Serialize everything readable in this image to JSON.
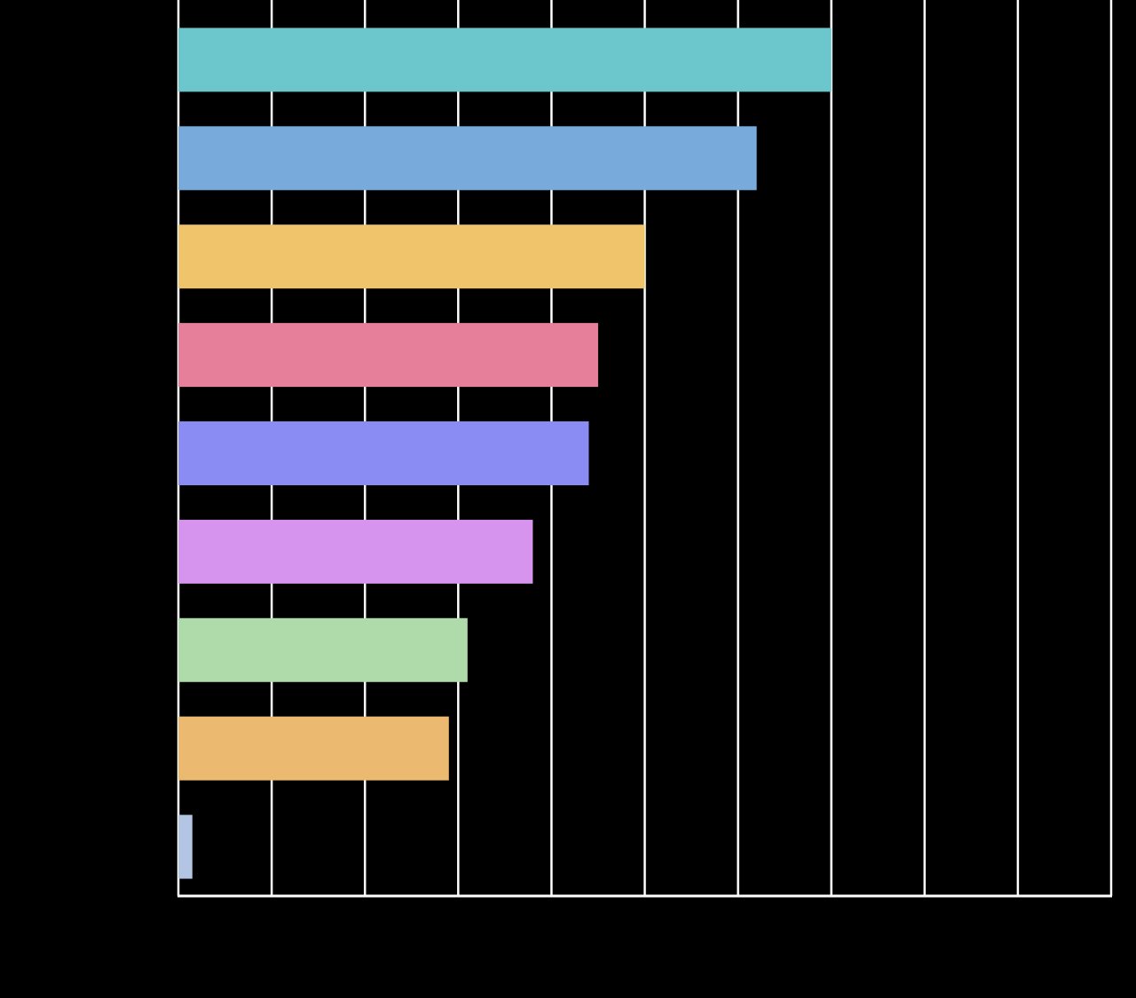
{
  "chart_data": {
    "type": "bar",
    "orientation": "horizontal",
    "title": "",
    "xlabel": "",
    "ylabel": "",
    "xlim": [
      0,
      10
    ],
    "grid": true,
    "values": [
      7.0,
      6.2,
      5.0,
      4.5,
      4.4,
      3.8,
      3.1,
      2.9,
      0.15
    ],
    "colors": [
      "#6cc7cc",
      "#78aadb",
      "#efc46b",
      "#e57f9a",
      "#8b8cf3",
      "#d694ee",
      "#afdbab",
      "#ebb96f",
      "#b4c4e3"
    ]
  }
}
